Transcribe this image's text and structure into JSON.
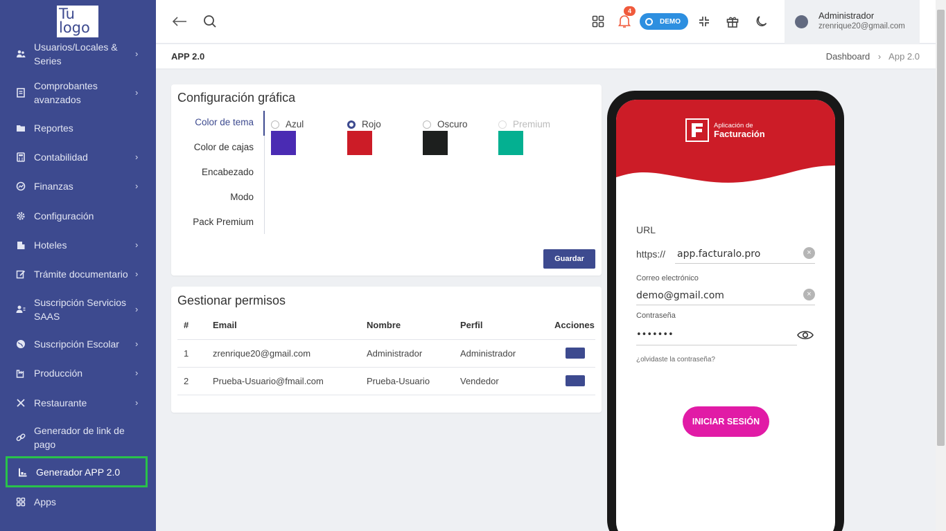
{
  "sidebar": {
    "logo": "Tu logo",
    "items": [
      {
        "label": "Usuarios/Locales & Series",
        "icon": "users-icon",
        "has_chevron": true
      },
      {
        "label": "Comprobantes avanzados",
        "icon": "receipt-icon",
        "has_chevron": true
      },
      {
        "label": "Reportes",
        "icon": "folder-icon",
        "has_chevron": false
      },
      {
        "label": "Contabilidad",
        "icon": "calculator-icon",
        "has_chevron": true
      },
      {
        "label": "Finanzas",
        "icon": "chart-circle-icon",
        "has_chevron": true
      },
      {
        "label": "Configuración",
        "icon": "gear-icon",
        "has_chevron": false
      },
      {
        "label": "Hoteles",
        "icon": "building-icon",
        "has_chevron": true
      },
      {
        "label": "Trámite documentario",
        "icon": "edit-icon",
        "has_chevron": true
      },
      {
        "label": "Suscripción Servicios SAAS",
        "icon": "user-list-icon",
        "has_chevron": true
      },
      {
        "label": "Suscripción Escolar",
        "icon": "globe-icon",
        "has_chevron": true
      },
      {
        "label": "Producción",
        "icon": "factory-icon",
        "has_chevron": true
      },
      {
        "label": "Restaurante",
        "icon": "utensils-icon",
        "has_chevron": true
      },
      {
        "label": "Generador de link de pago",
        "icon": "link-icon",
        "has_chevron": false
      },
      {
        "label": "Generador APP 2.0",
        "icon": "app-builder-icon",
        "has_chevron": false,
        "active": true
      },
      {
        "label": "Apps",
        "icon": "grid-icon",
        "has_chevron": false
      }
    ]
  },
  "topbar": {
    "notifications_count": "4",
    "demo_label": "DEMO",
    "user_name": "Administrador",
    "user_email": "zrenrique20@gmail.com"
  },
  "page": {
    "title": "APP 2.0",
    "breadcrumb": [
      "Dashboard",
      "App 2.0"
    ]
  },
  "config": {
    "title": "Configuración gráfica",
    "tabs": [
      "Color de tema",
      "Color de cajas",
      "Encabezado",
      "Modo",
      "Pack Premium"
    ],
    "active_tab": "Color de tema",
    "options": [
      {
        "label": "Azul",
        "color": "#4a2bb3",
        "selected": false,
        "disabled": false
      },
      {
        "label": "Rojo",
        "color": "#cc1c27",
        "selected": true,
        "disabled": false
      },
      {
        "label": "Oscuro",
        "color": "#1d1f1e",
        "selected": false,
        "disabled": false
      },
      {
        "label": "Premium",
        "color": "#04b091",
        "selected": false,
        "disabled": true
      }
    ],
    "save_label": "Guardar"
  },
  "permissions": {
    "title": "Gestionar permisos",
    "columns": [
      "#",
      "Email",
      "Nombre",
      "Perfil",
      "Acciones"
    ],
    "rows": [
      {
        "num": "1",
        "email": "zrenrique20@gmail.com",
        "name": "Administrador",
        "profile": "Administrador"
      },
      {
        "num": "2",
        "email": "Prueba-Usuario@fmail.com",
        "name": "Prueba-Usuario",
        "profile": "Vendedor"
      }
    ]
  },
  "phone": {
    "header_color": "#cc1c27",
    "app_title_1": "Aplicación de",
    "app_title_2": "Facturación",
    "url_label": "URL",
    "url_prefix": "https://",
    "url_value": "app.facturalo.pro",
    "email_label": "Correo electrónico",
    "email_value": "demo@gmail.com",
    "password_label": "Contraseña",
    "password_value": "•••••••",
    "forgot_label": "¿olvidaste la contraseña?",
    "login_label": "INICIAR SESIÓN"
  },
  "colors": {
    "primary": "#3d4a8f",
    "accent": "#e11ba6",
    "highlight": "#29c24a"
  }
}
